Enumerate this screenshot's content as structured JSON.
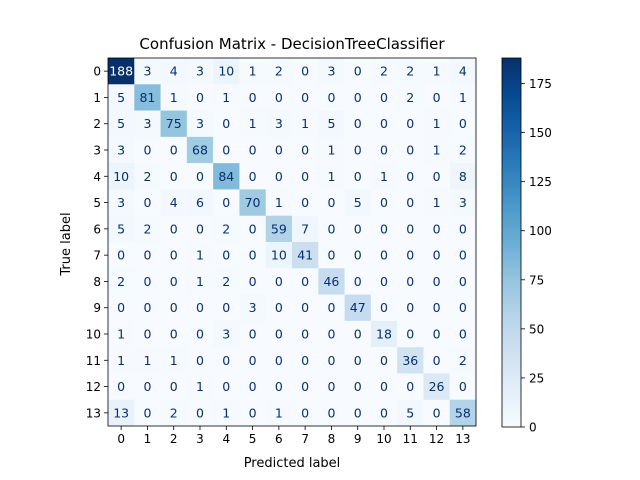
{
  "chart_data": {
    "type": "heatmap",
    "title": "Confusion Matrix - DecisionTreeClassifier",
    "xlabel": "Predicted label",
    "ylabel": "True label",
    "x_ticks": [
      "0",
      "1",
      "2",
      "3",
      "4",
      "5",
      "6",
      "7",
      "8",
      "9",
      "10",
      "11",
      "12",
      "13"
    ],
    "y_ticks": [
      "0",
      "1",
      "2",
      "3",
      "4",
      "5",
      "6",
      "7",
      "8",
      "9",
      "10",
      "11",
      "12",
      "13"
    ],
    "values": [
      [
        188,
        3,
        4,
        3,
        10,
        1,
        2,
        0,
        3,
        0,
        2,
        2,
        1,
        4
      ],
      [
        5,
        81,
        1,
        0,
        1,
        0,
        0,
        0,
        0,
        0,
        0,
        2,
        0,
        1
      ],
      [
        5,
        3,
        75,
        3,
        0,
        1,
        3,
        1,
        5,
        0,
        0,
        0,
        1,
        0
      ],
      [
        3,
        0,
        0,
        68,
        0,
        0,
        0,
        0,
        1,
        0,
        0,
        0,
        1,
        2
      ],
      [
        10,
        2,
        0,
        0,
        84,
        0,
        0,
        0,
        1,
        0,
        1,
        0,
        0,
        8
      ],
      [
        3,
        0,
        4,
        6,
        0,
        70,
        1,
        0,
        0,
        5,
        0,
        0,
        1,
        3
      ],
      [
        5,
        2,
        0,
        0,
        2,
        0,
        59,
        7,
        0,
        0,
        0,
        0,
        0,
        0
      ],
      [
        0,
        0,
        0,
        1,
        0,
        0,
        10,
        41,
        0,
        0,
        0,
        0,
        0,
        0
      ],
      [
        2,
        0,
        0,
        1,
        2,
        0,
        0,
        0,
        46,
        0,
        0,
        0,
        0,
        0
      ],
      [
        0,
        0,
        0,
        0,
        0,
        3,
        0,
        0,
        0,
        47,
        0,
        0,
        0,
        0
      ],
      [
        1,
        0,
        0,
        0,
        3,
        0,
        0,
        0,
        0,
        0,
        18,
        0,
        0,
        0
      ],
      [
        1,
        1,
        1,
        0,
        0,
        0,
        0,
        0,
        0,
        0,
        0,
        36,
        0,
        2
      ],
      [
        0,
        0,
        0,
        1,
        0,
        0,
        0,
        0,
        0,
        0,
        0,
        0,
        26,
        0
      ],
      [
        13,
        0,
        2,
        0,
        1,
        0,
        1,
        0,
        0,
        0,
        0,
        5,
        0,
        58
      ]
    ],
    "colormap": "Blues",
    "colorbar": {
      "min": 0,
      "max": 188,
      "ticks": [
        "0",
        "25",
        "50",
        "75",
        "100",
        "125",
        "150",
        "175"
      ]
    },
    "grid": false
  }
}
